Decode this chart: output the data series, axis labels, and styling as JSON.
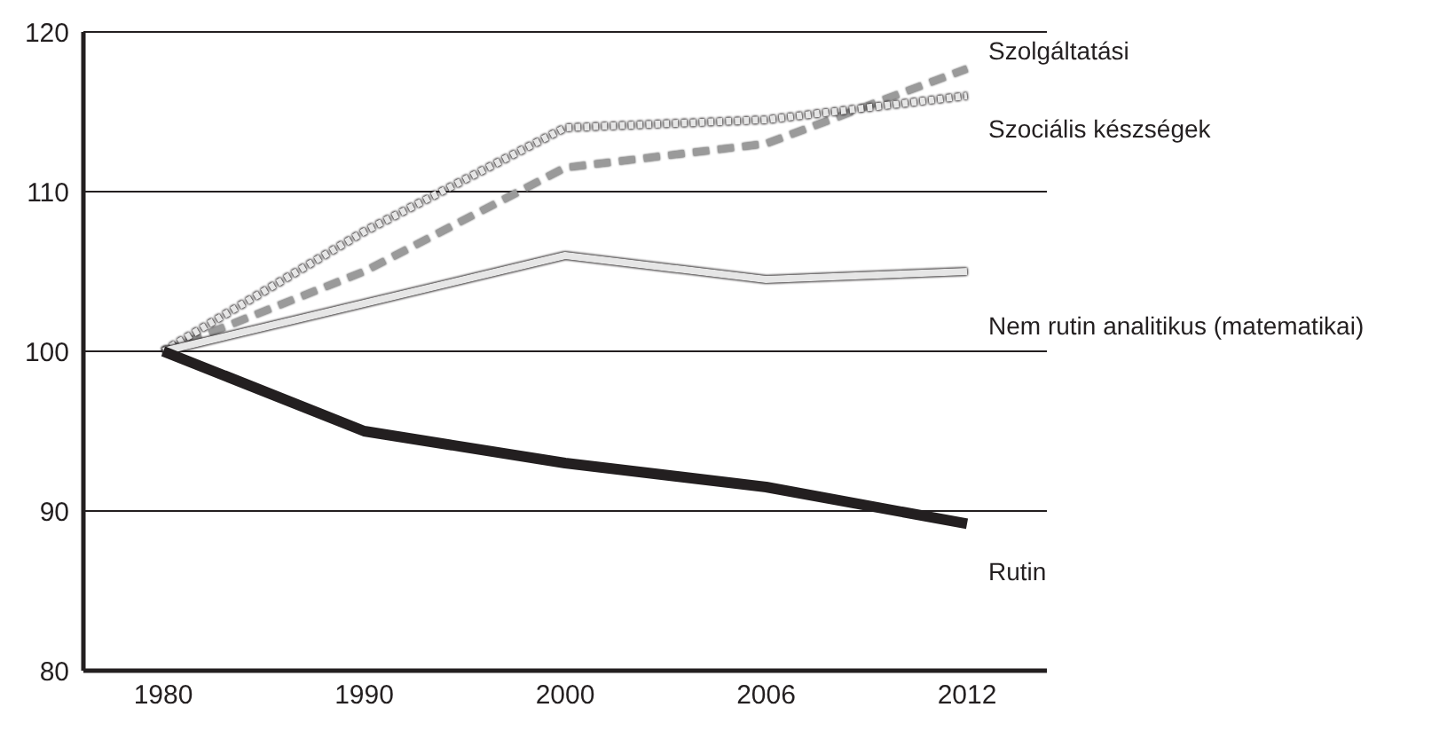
{
  "chart_data": {
    "type": "line",
    "categories": [
      "1980",
      "1990",
      "2000",
      "2006",
      "2012"
    ],
    "series": [
      {
        "name": "Szolgáltatási",
        "color": "#9a9a9a",
        "line_style": "dashed",
        "values": [
          100,
          105,
          111.5,
          113,
          117.7
        ]
      },
      {
        "name": "Szociális készségek",
        "color": "#e6e6e6",
        "line_style": "dotted",
        "values": [
          100,
          107.5,
          114,
          114.5,
          116
        ]
      },
      {
        "name": "Nem rutin analitikus (matematikai)",
        "color": "#e6e6e6",
        "line_style": "solid",
        "values": [
          100,
          103,
          106,
          104.5,
          105
        ]
      },
      {
        "name": "Rutin",
        "color": "#231f20",
        "line_style": "solid",
        "values": [
          100,
          95,
          93,
          91.5,
          89.2
        ]
      }
    ],
    "ylim": [
      80,
      120
    ],
    "yticks": [
      80,
      90,
      100,
      110,
      120
    ],
    "grid": "y",
    "marker": "none"
  }
}
